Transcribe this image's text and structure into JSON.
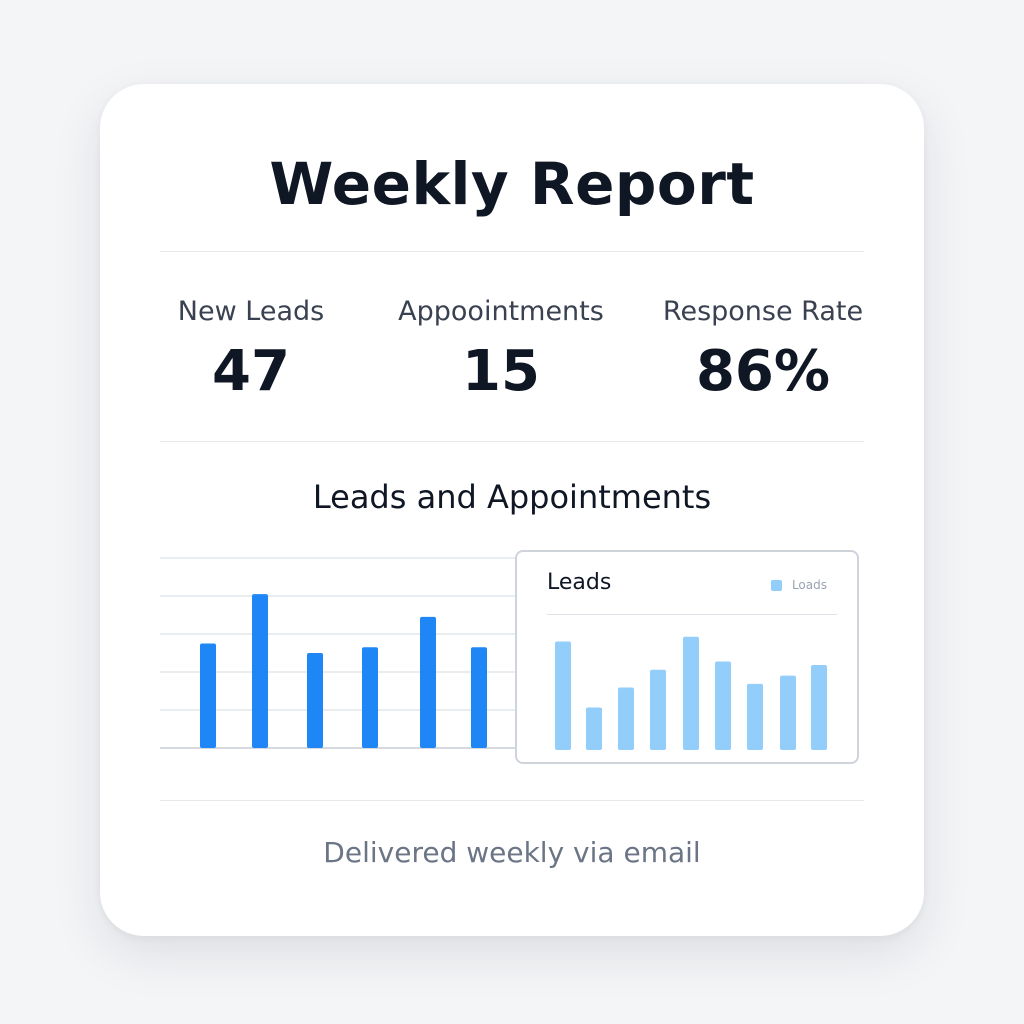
{
  "report": {
    "title": "Weekly Report",
    "footer": "Delivered weekly via email"
  },
  "metrics": [
    {
      "label": "New Leads",
      "value": "47"
    },
    {
      "label": "Appoointments",
      "value": "15"
    },
    {
      "label": "Response Rate",
      "value": "86%"
    }
  ],
  "colors": {
    "primary_bar": "#1e86f5",
    "light_bar": "#93cdfa",
    "grid": "#e4e7eb",
    "baseline": "#c9ced6"
  },
  "chart_data": [
    {
      "type": "bar",
      "title": "Leads and Appointments",
      "values": [
        5.5,
        8.1,
        5.0,
        5.3,
        6.9,
        5.3
      ],
      "ylim": [
        0,
        10
      ],
      "grid": true
    },
    {
      "type": "bar",
      "title": "Leads",
      "legend": [
        "Loads"
      ],
      "legend_position": "top-right",
      "values": [
        9.2,
        3.6,
        5.3,
        6.8,
        9.6,
        7.5,
        5.6,
        6.3,
        7.2
      ],
      "ylim": [
        0,
        10
      ],
      "grid": false
    }
  ]
}
